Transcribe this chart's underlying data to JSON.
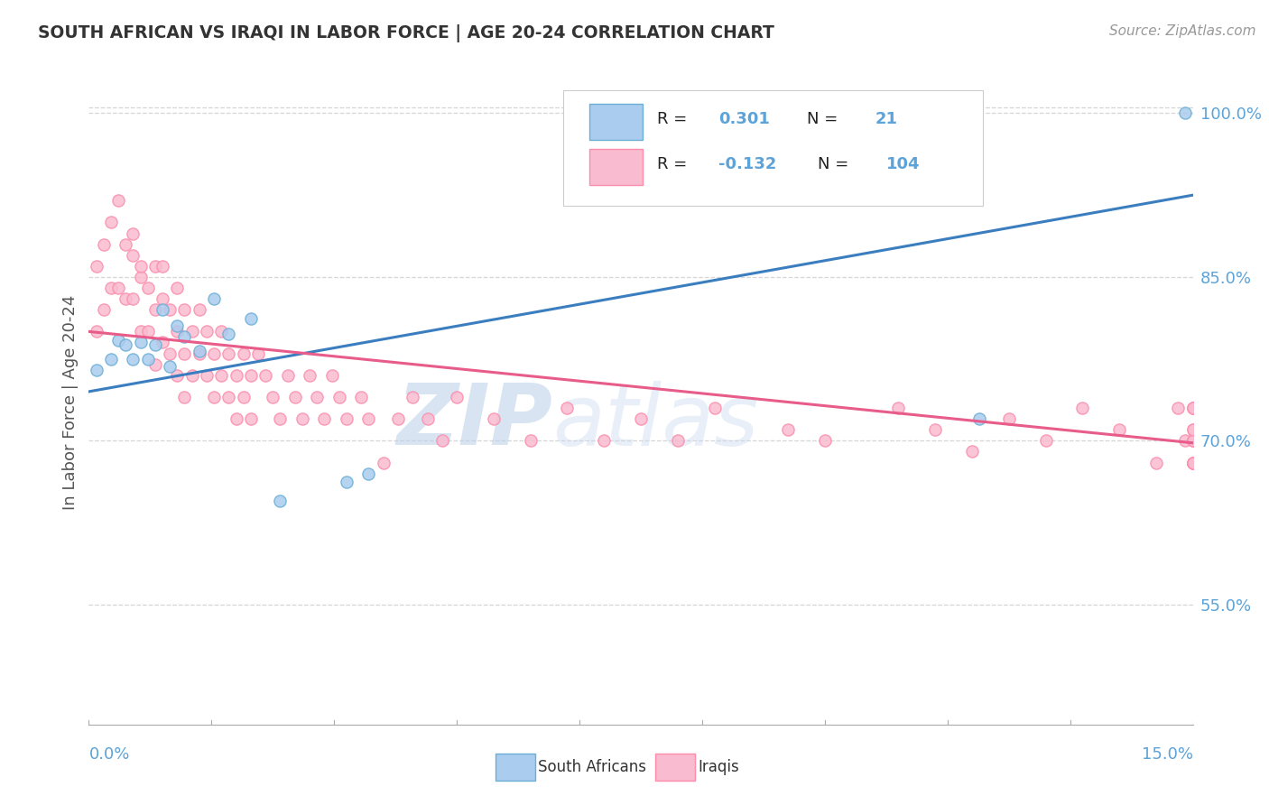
{
  "title": "SOUTH AFRICAN VS IRAQI IN LABOR FORCE | AGE 20-24 CORRELATION CHART",
  "source_text": "Source: ZipAtlas.com",
  "ylabel": "In Labor Force | Age 20-24",
  "xlim": [
    0.0,
    0.15
  ],
  "ylim": [
    0.44,
    1.03
  ],
  "xtick_labels": [
    "0.0%",
    "15.0%"
  ],
  "ytick_labels": [
    "55.0%",
    "70.0%",
    "85.0%",
    "100.0%"
  ],
  "ytick_values": [
    0.55,
    0.7,
    0.85,
    1.0
  ],
  "blue_color": "#6baed6",
  "pink_color": "#fc8dab",
  "blue_line_color": "#3b7ec0",
  "pink_line_color": "#e85c8a",
  "blue_dot_fill": "#aaccee",
  "pink_dot_fill": "#f9bbd0",
  "title_color": "#333333",
  "axis_label_color": "#555555",
  "tick_color": "#5ba3d9",
  "grid_color": "#cccccc",
  "sa_x": [
    0.001,
    0.003,
    0.004,
    0.005,
    0.006,
    0.007,
    0.008,
    0.009,
    0.01,
    0.011,
    0.012,
    0.013,
    0.015,
    0.017,
    0.019,
    0.022,
    0.026,
    0.035,
    0.038,
    0.121,
    0.149
  ],
  "sa_y": [
    0.765,
    0.775,
    0.792,
    0.788,
    0.775,
    0.79,
    0.775,
    0.788,
    0.82,
    0.768,
    0.805,
    0.795,
    0.782,
    0.83,
    0.798,
    0.812,
    0.645,
    0.662,
    0.67,
    0.72,
    1.0
  ],
  "iq_x": [
    0.001,
    0.001,
    0.002,
    0.002,
    0.003,
    0.003,
    0.004,
    0.004,
    0.005,
    0.005,
    0.006,
    0.006,
    0.006,
    0.007,
    0.007,
    0.007,
    0.008,
    0.008,
    0.009,
    0.009,
    0.009,
    0.01,
    0.01,
    0.01,
    0.011,
    0.011,
    0.012,
    0.012,
    0.012,
    0.013,
    0.013,
    0.013,
    0.014,
    0.014,
    0.015,
    0.015,
    0.016,
    0.016,
    0.017,
    0.017,
    0.018,
    0.018,
    0.019,
    0.019,
    0.02,
    0.02,
    0.021,
    0.021,
    0.022,
    0.022,
    0.023,
    0.024,
    0.025,
    0.026,
    0.027,
    0.028,
    0.029,
    0.03,
    0.031,
    0.032,
    0.033,
    0.034,
    0.035,
    0.037,
    0.038,
    0.04,
    0.042,
    0.044,
    0.046,
    0.048,
    0.05,
    0.055,
    0.06,
    0.065,
    0.07,
    0.075,
    0.08,
    0.085,
    0.095,
    0.1,
    0.11,
    0.115,
    0.12,
    0.125,
    0.13,
    0.135,
    0.14,
    0.145,
    0.148,
    0.149,
    0.15,
    0.15,
    0.15,
    0.15,
    0.15,
    0.15,
    0.15,
    0.15,
    0.15,
    0.15,
    0.15,
    0.15,
    0.15,
    0.15
  ],
  "iq_y": [
    0.86,
    0.8,
    0.88,
    0.82,
    0.9,
    0.84,
    0.92,
    0.84,
    0.88,
    0.83,
    0.87,
    0.83,
    0.89,
    0.85,
    0.8,
    0.86,
    0.84,
    0.8,
    0.86,
    0.82,
    0.77,
    0.83,
    0.79,
    0.86,
    0.82,
    0.78,
    0.84,
    0.8,
    0.76,
    0.82,
    0.78,
    0.74,
    0.8,
    0.76,
    0.82,
    0.78,
    0.8,
    0.76,
    0.78,
    0.74,
    0.8,
    0.76,
    0.78,
    0.74,
    0.76,
    0.72,
    0.78,
    0.74,
    0.76,
    0.72,
    0.78,
    0.76,
    0.74,
    0.72,
    0.76,
    0.74,
    0.72,
    0.76,
    0.74,
    0.72,
    0.76,
    0.74,
    0.72,
    0.74,
    0.72,
    0.68,
    0.72,
    0.74,
    0.72,
    0.7,
    0.74,
    0.72,
    0.7,
    0.73,
    0.7,
    0.72,
    0.7,
    0.73,
    0.71,
    0.7,
    0.73,
    0.71,
    0.69,
    0.72,
    0.7,
    0.73,
    0.71,
    0.68,
    0.73,
    0.7,
    0.73,
    0.7,
    0.68,
    0.73,
    0.7,
    0.68,
    0.73,
    0.7,
    0.68,
    0.71,
    0.68,
    0.7,
    0.68,
    0.71
  ],
  "blue_line_x0": 0.0,
  "blue_line_y0": 0.745,
  "blue_line_x1": 0.15,
  "blue_line_y1": 0.925,
  "pink_line_x0": 0.0,
  "pink_line_y0": 0.8,
  "pink_line_x1": 0.15,
  "pink_line_y1": 0.698
}
